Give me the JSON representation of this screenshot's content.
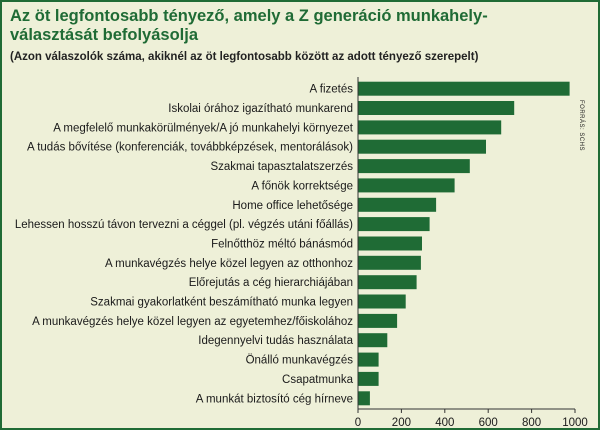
{
  "chart_data": {
    "type": "bar",
    "orientation": "horizontal",
    "title": "Az öt legfontosabb tényező, amely a Z generáció munkahely-választását befolyásolja",
    "title_lines": [
      "Az öt legfontosabb tényező, amely a Z generáció munkahely-",
      "választását befolyásolja"
    ],
    "subtitle": "(Azon válaszolók száma, akiknél az öt legfontosabb között az adott tényező szerepelt)",
    "source": "FORRÁS: SCHS",
    "categories": [
      "A fizetés",
      "Iskolai órához igazítható munkarend",
      "A megfelelő munkakörülmények/A jó munkahelyi környezet",
      "A tudás bővítése (konferenciák, továbbképzések, mentorálások)",
      "Szakmai tapasztalatszerzés",
      "A főnök korrektsége",
      "Home office lehetősége",
      "Lehessen hosszú távon tervezni a céggel (pl. végzés utáni főállás)",
      "Felnőtthöz méltó bánásmód",
      "A munkavégzés helye közel legyen az otthonhoz",
      "Előrejutás a cég hierarchiájában",
      "Szakmai gyakorlatként beszámítható munka legyen",
      "A munkavégzés helye közel legyen az egyetemhez/főiskolához",
      "Idegennyelvi tudás használata",
      "Önálló munkavégzés",
      "Csapatmunka",
      "A munkát biztosító cég hírneve"
    ],
    "values": [
      975,
      720,
      660,
      590,
      515,
      445,
      360,
      330,
      295,
      290,
      270,
      220,
      180,
      135,
      95,
      95,
      55
    ],
    "xlim": [
      0,
      1000
    ],
    "xticks": [
      0,
      200,
      400,
      600,
      800,
      1000
    ],
    "xtick_labels": [
      "0",
      "200",
      "400",
      "600",
      "800",
      "1000"
    ],
    "xlabel": "",
    "ylabel": "",
    "grid": false,
    "legend": "none",
    "bar_color": "#1f6b35",
    "axis_color": "#333333"
  }
}
